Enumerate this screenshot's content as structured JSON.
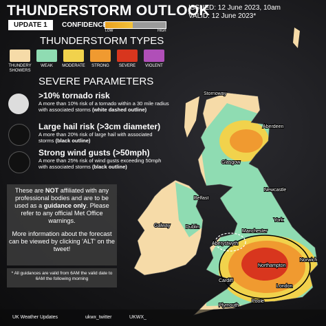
{
  "header": {
    "title": "THUNDERSTORM OUTLOOK",
    "issued": "ISSUED: 12 June 2023, 10am",
    "valid": "VALID: 12 June 2023*",
    "update": "UPDATE 1",
    "confidence_label": "CONFIDENCE:",
    "confidence_level": 45,
    "confidence_low": "LOW",
    "confidence_high": "HIGH"
  },
  "types": {
    "heading": "THUNDERSTORM TYPES",
    "items": [
      {
        "label": "THUNDERY SHOWERS",
        "color": "#f6dba8"
      },
      {
        "label": "WEAK",
        "color": "#8fdcb2"
      },
      {
        "label": "MODERATE",
        "color": "#f1d24c"
      },
      {
        "label": "STRONG",
        "color": "#f09a30"
      },
      {
        "label": "SEVERE",
        "color": "#d8361e"
      },
      {
        "label": "VIOLENT",
        "color": "#b04fb8"
      }
    ]
  },
  "parameters": {
    "heading": "SEVERE PARAMETERS",
    "items": [
      {
        "title": ">10% tornado risk",
        "description": [
          {
            "text": "A more than 10% risk of a tornado within a 30 mile radius with associated storms ",
            "bold": false
          },
          {
            "text": "(white dashed outline)",
            "bold": true
          }
        ]
      },
      {
        "title": "Large hail risk (>3cm diameter)",
        "description": [
          {
            "text": "A more than 20% risk of large hail with associated storms ",
            "bold": false
          },
          {
            "text": "(black outline)",
            "bold": true
          }
        ]
      },
      {
        "title": "Strong wind gusts (>50mph)",
        "description": [
          {
            "text": "A more than 25% risk of wind gusts exceeding 50mph with associated storms ",
            "bold": false
          },
          {
            "text": "(black outline)",
            "bold": true
          }
        ]
      }
    ]
  },
  "disclaimer": {
    "paragraphs": [
      [
        {
          "text": "These are ",
          "bold": false
        },
        {
          "text": "NOT",
          "bold": true
        },
        {
          "text": " affiliated with any professional bodies and are to be used as a ",
          "bold": false
        },
        {
          "text": "guidance only",
          "bold": true
        },
        {
          "text": ". Please refer to any official Met Office warnings.",
          "bold": false
        }
      ],
      [
        {
          "text": "More information about the forecast can be viewed by clicking 'ALT' on the tweet!",
          "bold": false
        }
      ]
    ]
  },
  "footnote": "* All guidances are valid from 6AM the valid date to 6AM the following morning",
  "footer": {
    "brand": "UK Weather Updates",
    "twitter": "ukwx_twitter",
    "handle": "UKWX_"
  },
  "map": {
    "labels": [
      "Stornoway",
      "Aberdeen",
      "Glasgow",
      "Newcastle",
      "Belfast",
      "York",
      "Manchester",
      "Dublin",
      "Galway",
      "Aberystwyth",
      "Northampton",
      "Norwich",
      "Cardiff",
      "London",
      "Plymouth",
      "Poole"
    ]
  }
}
